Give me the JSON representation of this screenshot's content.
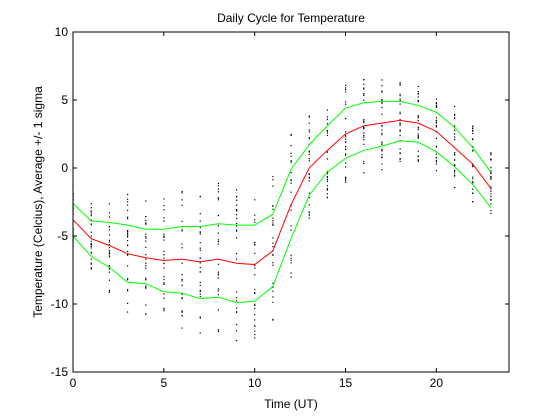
{
  "chart_data": {
    "type": "line",
    "title": "Daily Cycle for Temperature",
    "xlabel": "Time (UT)",
    "ylabel": "Temperature (Celcius), Average +/- 1 sigma",
    "xlim": [
      0,
      24
    ],
    "ylim": [
      -15,
      10
    ],
    "xticks": [
      0,
      5,
      10,
      15,
      20
    ],
    "yticks": [
      -15,
      -10,
      -5,
      0,
      5,
      10
    ],
    "grid": false,
    "x": [
      0,
      1,
      2,
      3,
      4,
      5,
      6,
      7,
      8,
      9,
      10,
      11,
      12,
      13,
      14,
      15,
      16,
      17,
      18,
      19,
      20,
      21,
      22,
      23
    ],
    "series": [
      {
        "role": "mean",
        "color": "#ff0000",
        "values": [
          -3.8,
          -5.2,
          -5.7,
          -6.3,
          -6.6,
          -6.8,
          -6.7,
          -6.9,
          -6.7,
          -7.0,
          -7.1,
          -6.1,
          -2.7,
          0.0,
          1.3,
          2.5,
          3.1,
          3.3,
          3.5,
          3.3,
          2.7,
          1.5,
          0.3,
          -1.5
        ]
      },
      {
        "role": "upper",
        "color": "#00ff00",
        "values": [
          -2.6,
          -3.9,
          -4.0,
          -4.2,
          -4.5,
          -4.5,
          -4.3,
          -4.3,
          -4.1,
          -4.2,
          -4.2,
          -3.4,
          -0.1,
          1.7,
          3.1,
          4.4,
          4.8,
          4.9,
          4.9,
          4.6,
          4.1,
          3.0,
          1.5,
          -0.3
        ]
      },
      {
        "role": "lower",
        "color": "#00ff00",
        "values": [
          -5.0,
          -6.5,
          -7.3,
          -8.4,
          -8.5,
          -9.1,
          -9.2,
          -9.6,
          -9.5,
          -9.9,
          -9.8,
          -8.7,
          -5.2,
          -2.0,
          -0.3,
          0.7,
          1.3,
          1.6,
          2.0,
          1.9,
          1.2,
          0.1,
          -1.2,
          -2.9
        ]
      }
    ],
    "scatter_color": "#000000"
  }
}
